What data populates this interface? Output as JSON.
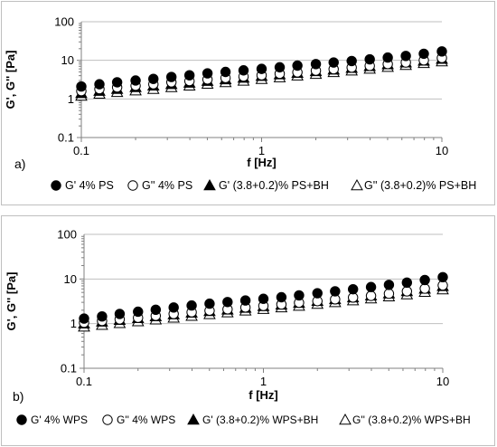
{
  "chart_data": [
    {
      "type": "scatter",
      "panel_label": "a)",
      "xlabel": "f [Hz]",
      "ylabel": "G', G'' [Pa]",
      "x_scale": "log",
      "y_scale": "log",
      "xlim": [
        0.1,
        10
      ],
      "ylim": [
        0.1,
        100
      ],
      "x_ticks": [
        "0.1",
        "1",
        "10"
      ],
      "y_ticks": [
        "0.1",
        "1",
        "10",
        "100"
      ],
      "grid": "horizontal",
      "legend_position": "bottom",
      "x": [
        0.1,
        0.126,
        0.158,
        0.2,
        0.251,
        0.316,
        0.398,
        0.501,
        0.631,
        0.794,
        1.0,
        1.26,
        1.58,
        2.0,
        2.51,
        3.16,
        3.98,
        5.01,
        6.31,
        7.94,
        10.0
      ],
      "series": [
        {
          "name": "G' 4% PS",
          "marker": "filled-circle",
          "values": [
            2.1,
            2.4,
            2.7,
            3.0,
            3.3,
            3.7,
            4.1,
            4.6,
            5.0,
            5.5,
            6.0,
            6.6,
            7.3,
            8.0,
            8.8,
            9.6,
            10.6,
            11.8,
            13.0,
            14.8,
            17.0
          ]
        },
        {
          "name": "G'' 4% PS",
          "marker": "open-circle",
          "values": [
            1.6,
            1.8,
            2.0,
            2.2,
            2.4,
            2.7,
            2.9,
            3.2,
            3.5,
            3.8,
            4.1,
            4.5,
            4.9,
            5.4,
            5.9,
            6.5,
            7.2,
            8.0,
            8.8,
            10.0,
            11.5
          ]
        },
        {
          "name": "G' (3.8+0.2)% PS+BH",
          "marker": "filled-triangle",
          "values": [
            1.4,
            1.6,
            1.8,
            2.0,
            2.2,
            2.4,
            2.6,
            2.9,
            3.2,
            3.5,
            3.9,
            4.3,
            4.7,
            5.2,
            5.7,
            6.3,
            7.0,
            7.8,
            8.7,
            9.7,
            10.8
          ]
        },
        {
          "name": "G'' (3.8+0.2)% PS+BH",
          "marker": "open-triangle",
          "values": [
            1.2,
            1.35,
            1.5,
            1.65,
            1.8,
            2.0,
            2.2,
            2.45,
            2.7,
            2.95,
            3.25,
            3.6,
            4.0,
            4.4,
            4.9,
            5.4,
            6.0,
            6.7,
            7.5,
            8.4,
            9.3
          ]
        }
      ]
    },
    {
      "type": "scatter",
      "panel_label": "b)",
      "xlabel": "f [Hz]",
      "ylabel": "G', G'' [Pa]",
      "x_scale": "log",
      "y_scale": "log",
      "xlim": [
        0.1,
        10
      ],
      "ylim": [
        0.1,
        100
      ],
      "x_ticks": [
        "0.1",
        "1",
        "10"
      ],
      "y_ticks": [
        "0.1",
        "1",
        "10",
        "100"
      ],
      "grid": "horizontal",
      "legend_position": "bottom",
      "x": [
        0.1,
        0.126,
        0.158,
        0.2,
        0.251,
        0.316,
        0.398,
        0.501,
        0.631,
        0.794,
        1.0,
        1.26,
        1.58,
        2.0,
        2.51,
        3.16,
        3.98,
        5.01,
        6.31,
        7.94,
        10.0
      ],
      "series": [
        {
          "name": "G' 4% WPS",
          "marker": "filled-circle",
          "values": [
            1.3,
            1.45,
            1.65,
            1.85,
            2.05,
            2.3,
            2.55,
            2.8,
            3.05,
            3.3,
            3.6,
            3.9,
            4.3,
            4.8,
            5.3,
            5.9,
            6.6,
            7.4,
            8.3,
            9.5,
            11.0
          ]
        },
        {
          "name": "G'' 4% WPS",
          "marker": "open-circle",
          "values": [
            1.05,
            1.15,
            1.25,
            1.35,
            1.5,
            1.65,
            1.8,
            1.95,
            2.1,
            2.3,
            2.5,
            2.7,
            2.95,
            3.2,
            3.5,
            3.85,
            4.2,
            4.7,
            5.3,
            6.1,
            7.2
          ]
        },
        {
          "name": "G' (3.8+0.2)% WPS+BH",
          "marker": "filled-triangle",
          "values": [
            1.0,
            1.1,
            1.2,
            1.32,
            1.45,
            1.6,
            1.75,
            1.9,
            2.05,
            2.25,
            2.45,
            2.65,
            2.9,
            3.2,
            3.5,
            3.85,
            4.25,
            4.7,
            5.3,
            6.0,
            6.9
          ]
        },
        {
          "name": "G'' (3.8+0.2)% WPS+BH",
          "marker": "open-triangle",
          "values": [
            0.85,
            0.93,
            1.02,
            1.12,
            1.23,
            1.35,
            1.48,
            1.62,
            1.78,
            1.95,
            2.12,
            2.3,
            2.5,
            2.75,
            3.0,
            3.3,
            3.65,
            4.05,
            4.5,
            5.1,
            5.8
          ]
        }
      ]
    }
  ]
}
